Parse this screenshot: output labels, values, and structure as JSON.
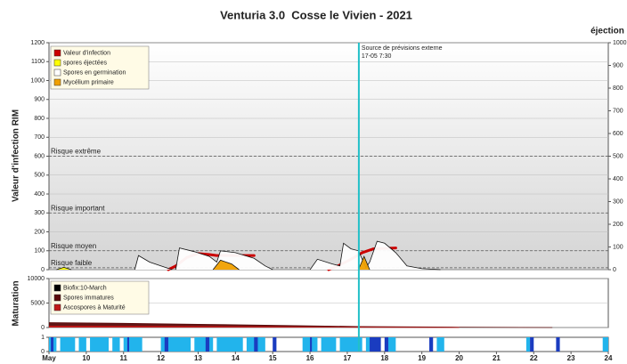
{
  "chart_data": [
    {
      "type": "area",
      "title": "Venturia 3.0  Cosse le Vivien - 2021",
      "ylabel": "Valeur d'infection RIM",
      "y2label": "éjection",
      "xlim": [
        9,
        24
      ],
      "ylim": [
        0,
        1200
      ],
      "yticks": [
        0,
        100,
        200,
        300,
        400,
        500,
        600,
        700,
        800,
        900,
        1000,
        1100,
        1200
      ],
      "y2lim": [
        0,
        1000
      ],
      "y2ticks": [
        0,
        100,
        200,
        300,
        400,
        500,
        600,
        700,
        800,
        900,
        1000
      ],
      "grid": true,
      "legend": "top-left",
      "annotations": [
        {
          "text": "Risque extrême",
          "value": 600
        },
        {
          "text": "Risque important",
          "value": 300
        },
        {
          "text": "Risque moyen",
          "value": 100
        },
        {
          "text": "Risque faible",
          "value": 10
        }
      ],
      "forecast": {
        "lines": [
          "Source de prévisions externe",
          "17-05 7:30"
        ],
        "x": 17.31,
        "color": "#22c0c8"
      },
      "series": [
        {
          "name": "Valeur d'infection",
          "color": "#cc0000",
          "style": "line",
          "x": [
            12.2,
            12.4,
            12.7,
            13.0,
            13.3,
            13.5,
            14.5,
            null,
            16.5,
            16.8,
            17.1,
            17.4,
            17.7,
            18.3
          ],
          "values": [
            0,
            20,
            65,
            85,
            80,
            75,
            75,
            null,
            0,
            25,
            55,
            90,
            110,
            115
          ]
        },
        {
          "name": "spores éjectées",
          "color": "#ffff00",
          "style": "area",
          "x": [
            9.2,
            9.4,
            9.6
          ],
          "values": [
            0,
            12,
            0
          ]
        },
        {
          "name": "Spores en germination",
          "color": "#ffffff",
          "style": "area",
          "x": [
            11.3,
            11.4,
            11.7,
            12.0,
            12.3,
            null,
            12.4,
            12.5,
            12.9,
            13.3,
            13.5,
            13.6,
            14.0,
            14.5,
            14.8,
            15.0,
            null,
            16.0,
            16.2,
            16.6,
            16.8,
            16.9,
            17.1,
            17.3,
            17.5,
            17.6,
            17.8,
            18.0,
            18.3,
            18.6,
            19.0,
            19.5
          ],
          "values": [
            0,
            75,
            40,
            20,
            0,
            null,
            0,
            115,
            95,
            70,
            40,
            100,
            90,
            60,
            20,
            0,
            null,
            0,
            55,
            30,
            20,
            140,
            110,
            100,
            10,
            40,
            150,
            140,
            90,
            20,
            5,
            0
          ]
        },
        {
          "name": "Mycélium primaire",
          "color": "#f0a000",
          "style": "area",
          "x": [
            13.4,
            13.6,
            13.9,
            14.1,
            null,
            17.3,
            17.45,
            17.6
          ],
          "values": [
            0,
            50,
            30,
            0,
            null,
            0,
            70,
            0
          ]
        }
      ]
    },
    {
      "type": "area",
      "ylabel": "Maturation",
      "xlim": [
        9,
        24
      ],
      "ylim": [
        0,
        10000
      ],
      "yticks": [
        0,
        5000,
        10000
      ],
      "grid": true,
      "legend": "top-left",
      "legend_note": {
        "text": "Biofix:10-March",
        "color": "#000000"
      },
      "series": [
        {
          "name": "Spores immatures",
          "color": "#5a0a0a",
          "style": "area",
          "x": [
            9,
            11,
            13,
            15,
            17.3,
            20,
            22.5
          ],
          "values": [
            1000,
            850,
            650,
            450,
            200,
            80,
            0
          ]
        },
        {
          "name": "Ascospores à Maturité",
          "color": "#c01818",
          "style": "area",
          "x": [
            9,
            12,
            15,
            17.3,
            20
          ],
          "values": [
            300,
            250,
            150,
            50,
            0
          ]
        }
      ]
    },
    {
      "type": "intervals",
      "xlim": [
        9,
        24
      ],
      "ylim": [
        0,
        1
      ],
      "yticks": [
        0,
        1
      ],
      "xticks": [
        {
          "value": 9,
          "label": "May"
        },
        10,
        11,
        12,
        13,
        14,
        15,
        16,
        17,
        18,
        19,
        20,
        21,
        22,
        23,
        24
      ],
      "colors": [
        "#22b4ec",
        "#1a3cc0"
      ],
      "intervals": [
        {
          "start": 9.0,
          "end": 9.2,
          "level": 0
        },
        {
          "start": 9.3,
          "end": 9.7,
          "level": 0
        },
        {
          "start": 9.8,
          "end": 10.0,
          "level": 0
        },
        {
          "start": 10.1,
          "end": 10.6,
          "level": 0
        },
        {
          "start": 10.7,
          "end": 10.9,
          "level": 0
        },
        {
          "start": 11.0,
          "end": 11.5,
          "level": 0
        },
        {
          "start": 12.0,
          "end": 12.8,
          "level": 0
        },
        {
          "start": 12.9,
          "end": 13.4,
          "level": 0
        },
        {
          "start": 13.5,
          "end": 14.2,
          "level": 0
        },
        {
          "start": 14.3,
          "end": 14.8,
          "level": 0
        },
        {
          "start": 15.8,
          "end": 16.2,
          "level": 0
        },
        {
          "start": 16.3,
          "end": 16.7,
          "level": 0
        },
        {
          "start": 16.8,
          "end": 17.4,
          "level": 0
        },
        {
          "start": 17.5,
          "end": 17.8,
          "level": 0
        },
        {
          "start": 18.1,
          "end": 18.3,
          "level": 0
        },
        {
          "start": 19.4,
          "end": 19.6,
          "level": 0
        },
        {
          "start": 21.8,
          "end": 21.9,
          "level": 0
        },
        {
          "start": 23.85,
          "end": 24.0,
          "level": 0
        },
        {
          "start": 9.05,
          "end": 9.12,
          "level": 1
        },
        {
          "start": 11.1,
          "end": 11.15,
          "level": 1
        },
        {
          "start": 12.1,
          "end": 12.2,
          "level": 1
        },
        {
          "start": 13.2,
          "end": 13.3,
          "level": 1
        },
        {
          "start": 14.5,
          "end": 14.6,
          "level": 1
        },
        {
          "start": 15.0,
          "end": 15.1,
          "level": 1
        },
        {
          "start": 16.0,
          "end": 16.05,
          "level": 1
        },
        {
          "start": 17.6,
          "end": 17.9,
          "level": 1
        },
        {
          "start": 18.0,
          "end": 18.1,
          "level": 1
        },
        {
          "start": 19.2,
          "end": 19.3,
          "level": 1
        },
        {
          "start": 21.9,
          "end": 22.0,
          "level": 1
        },
        {
          "start": 22.6,
          "end": 22.7,
          "level": 1
        }
      ]
    }
  ]
}
